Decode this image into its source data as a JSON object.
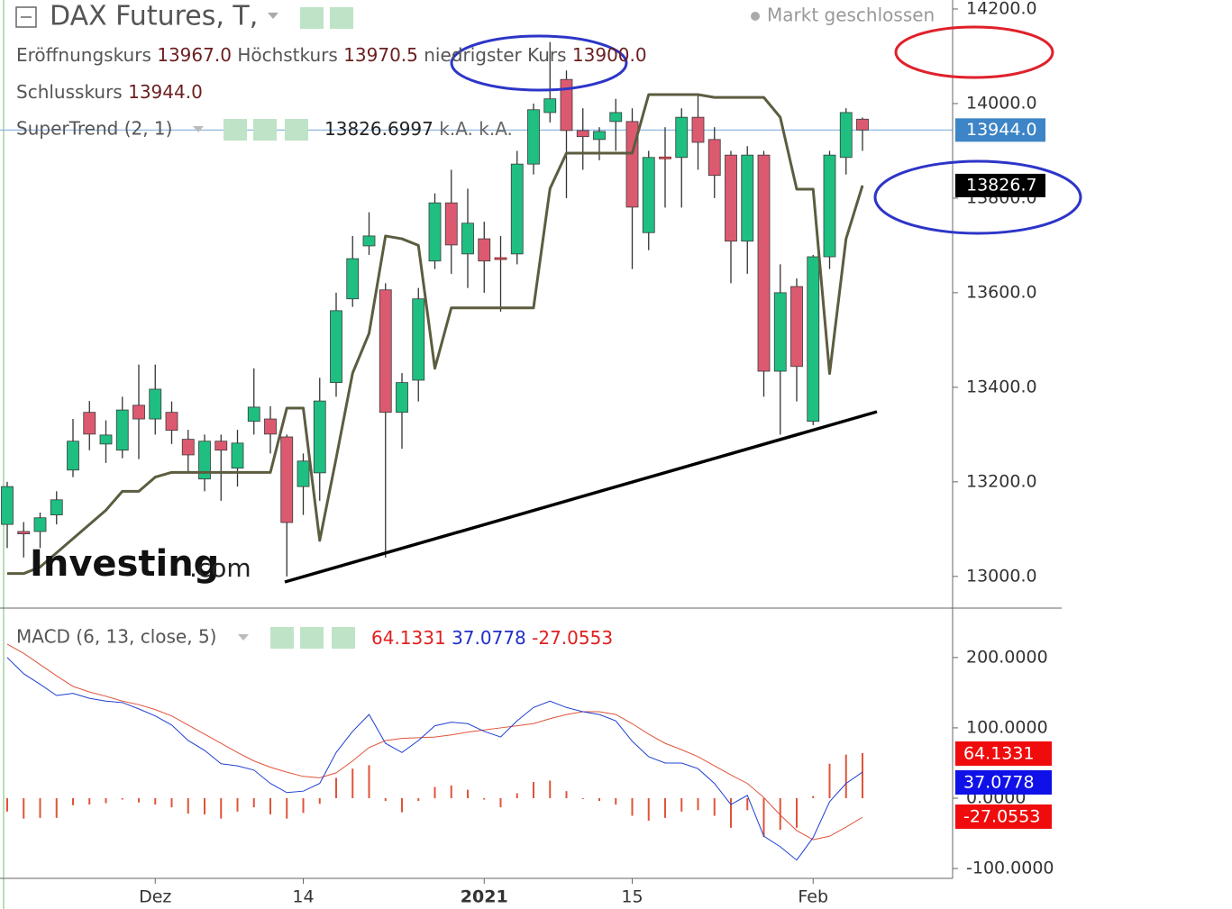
{
  "chart_data": [
    {
      "type": "candlestick",
      "title": "DAX Futures, T,",
      "status": "Markt geschlossen",
      "legend": {
        "open_name": "Eröffnungskurs",
        "open": "13967.0",
        "high_name": "Höchstkurs",
        "high": "13970.5",
        "low_name": "niedrigster Kurs",
        "low": "13900.0",
        "close_name": "Schlusskurs",
        "close": "13944.0"
      },
      "watermark": [
        "Investing",
        ".com"
      ],
      "categories": [
        null,
        null,
        null,
        null,
        null,
        null,
        null,
        null,
        null,
        "Dez",
        null,
        null,
        null,
        null,
        null,
        null,
        null,
        null,
        "14",
        null,
        null,
        null,
        null,
        null,
        null,
        null,
        null,
        null,
        null,
        "2021",
        null,
        null,
        null,
        null,
        null,
        null,
        null,
        null,
        "15",
        null,
        null,
        null,
        null,
        null,
        null,
        null,
        null,
        null,
        null,
        "Feb",
        null,
        null,
        null
      ],
      "open": [
        13110,
        13095,
        13095,
        13130,
        13225,
        13347,
        13280,
        13267,
        13362,
        13333,
        13347,
        13290,
        13206,
        13286,
        13229,
        13328,
        13333,
        13295,
        13190,
        13219,
        13410,
        13587,
        13699,
        13606,
        13347,
        13415,
        13667,
        13790,
        13682,
        13714,
        13674,
        13682,
        13872,
        13981,
        14051,
        13943,
        13924,
        13962,
        13962,
        13727,
        13887,
        13886,
        13971,
        13924,
        13891,
        13709,
        13891,
        13434,
        13613,
        13328,
        13676,
        13886,
        13967
      ],
      "high": [
        13200,
        13115,
        13135,
        13180,
        13333,
        13371,
        13330,
        13380,
        13448,
        13448,
        13370,
        13310,
        13300,
        13300,
        13310,
        13440,
        13360,
        13300,
        13260,
        13420,
        13600,
        13720,
        13770,
        13620,
        13430,
        13610,
        13810,
        13860,
        13820,
        13750,
        13720,
        13900,
        14000,
        14130,
        14070,
        13990,
        13950,
        14010,
        13990,
        13900,
        13950,
        13990,
        14020,
        13950,
        13900,
        13910,
        13900,
        13660,
        13630,
        13680,
        13900,
        13990,
        13970.5
      ],
      "low": [
        13060,
        13040,
        13060,
        13110,
        13210,
        13267,
        13240,
        13250,
        13248,
        13300,
        13280,
        13220,
        13180,
        13160,
        13190,
        13300,
        13260,
        13000,
        13130,
        13160,
        13380,
        13570,
        13680,
        13040,
        13270,
        13370,
        13650,
        13640,
        13610,
        13600,
        13560,
        13660,
        13850,
        13960,
        13800,
        13860,
        13880,
        13900,
        13650,
        13690,
        13780,
        13780,
        13860,
        13800,
        13620,
        13640,
        13380,
        13300,
        13370,
        13320,
        13650,
        13850,
        13900
      ],
      "close": [
        13190,
        13090,
        13124,
        13162,
        13286,
        13301,
        13299,
        13352,
        13333,
        13396,
        13309,
        13257,
        13286,
        13267,
        13282,
        13358,
        13301,
        13114,
        13244,
        13371,
        13562,
        13672,
        13720,
        13347,
        13410,
        13587,
        13790,
        13701,
        13747,
        13667,
        13672,
        13872,
        13987,
        14010,
        13943,
        13930,
        13941,
        13981,
        13781,
        13886,
        13886,
        13971,
        13918,
        13848,
        13709,
        13891,
        13434,
        13600,
        13444,
        13676,
        13891,
        13981,
        13944
      ],
      "last_close_label": "13944.0",
      "colors": {
        "up": "#1fbf82",
        "down": "#dc5a70",
        "wick": "#333333",
        "last": "#3d85c6"
      },
      "supertrend": {
        "name": "SuperTrend (2, 1)",
        "color": "#5c5c40",
        "value_label": "13826.6997",
        "na": [
          "k.A.",
          "k.A."
        ],
        "last_label": "13826.7",
        "values": [
          13006,
          13006,
          13020,
          13050,
          13080,
          13110,
          13140,
          13180,
          13180,
          13210,
          13220,
          13220,
          13220,
          13220,
          13220,
          13220,
          13220,
          13356,
          13356,
          13076,
          13250,
          13430,
          13514,
          13720,
          13714,
          13700,
          13440,
          13568,
          13568,
          13568,
          13568,
          13568,
          13568,
          13820,
          13895,
          13895,
          13895,
          13895,
          13895,
          14019,
          14019,
          14019,
          14019,
          14013,
          14013,
          14013,
          14013,
          13971,
          13819,
          13819,
          13429,
          13714,
          13826.6997
        ]
      },
      "ylim": [
        12933,
        14219
      ],
      "yticks": [
        {
          "value": 13000,
          "label": "13000.0"
        },
        {
          "value": 13200,
          "label": "13200.0"
        },
        {
          "value": 13400,
          "label": "13400.0"
        },
        {
          "value": 13600,
          "label": "13600.0"
        },
        {
          "value": 13800,
          "label": "13800.0"
        },
        {
          "value": 14000,
          "label": "14000.0"
        },
        {
          "value": 14200,
          "label": "14200.0"
        }
      ]
    },
    {
      "type": "macd",
      "title": "MACD (6, 13, close, 5)",
      "histogram": {
        "color": "#e0533a",
        "value_label": "64.1331",
        "values": [
          -19,
          -29,
          -28,
          -28,
          -10,
          -9,
          -7,
          -2,
          -6,
          -9,
          -13,
          -22,
          -23,
          -29,
          -19,
          -13,
          -23,
          -29,
          -21,
          -8,
          29,
          42,
          47,
          -4,
          -20,
          -4,
          16,
          18,
          12,
          -2,
          -13,
          7,
          23,
          25,
          10,
          0,
          -4,
          -9,
          -25,
          -32,
          -28,
          -19,
          -17,
          -25,
          -42,
          -17,
          -55,
          -45,
          -42,
          3,
          49,
          62,
          64.1331
        ]
      },
      "macd": {
        "color": "#1f3fd0",
        "value_label": "37.0778",
        "values": [
          200,
          177,
          162,
          146,
          149,
          142,
          138,
          136,
          127,
          117,
          104,
          82,
          68,
          49,
          46,
          40,
          21,
          8,
          10,
          21,
          65,
          95,
          119,
          78,
          65,
          82,
          103,
          108,
          106,
          95,
          87,
          110,
          129,
          138,
          129,
          123,
          119,
          110,
          81,
          59,
          50,
          50,
          42,
          21,
          -9,
          4,
          -54,
          -69,
          -88,
          -56,
          -5,
          21,
          37.0778
        ]
      },
      "signal": {
        "color": "#e0533a",
        "value_label": "-27.0553",
        "values": [
          219,
          206,
          190,
          174,
          159,
          151,
          145,
          138,
          133,
          126,
          117,
          104,
          91,
          78,
          65,
          53,
          44,
          37,
          31,
          29,
          36,
          53,
          72,
          82,
          85,
          86,
          87,
          90,
          94,
          97,
          100,
          103,
          106,
          113,
          119,
          123,
          123,
          119,
          106,
          91,
          78,
          69,
          59,
          46,
          33,
          21,
          1,
          -24,
          -46,
          -59,
          -54,
          -41,
          -27.0553
        ]
      },
      "ylim": [
        -114,
        269
      ],
      "yticks": [
        {
          "value": -100,
          "label": "-100.0000"
        },
        {
          "value": 0,
          "label": "0.0000"
        },
        {
          "value": 100,
          "label": "100.0000"
        },
        {
          "value": 200,
          "label": "200.0000"
        }
      ]
    }
  ]
}
